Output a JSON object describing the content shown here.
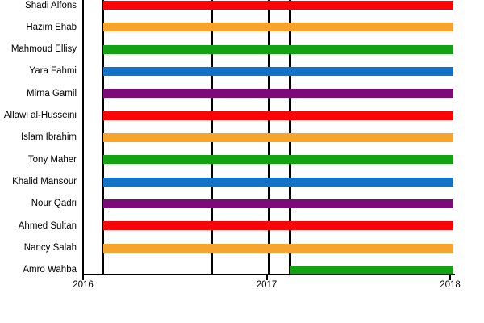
{
  "figure": {
    "background": "#ffffff",
    "axis_color": "#000000",
    "text_color": "#000000"
  },
  "chart_data": {
    "type": "bar",
    "subtype": "gantt-timeline",
    "orientation": "horizontal",
    "title": "",
    "xlabel": "",
    "ylabel": "",
    "grid": false,
    "legend": "none",
    "xlim": [
      2016,
      2018.02
    ],
    "x_ticks": [
      {
        "label": "2016",
        "value": 2016
      },
      {
        "label": "2017",
        "value": 2017
      },
      {
        "label": "2018",
        "value": 2018
      }
    ],
    "palette": {
      "red": "#fa0507",
      "orange": "#f8a32b",
      "green": "#12a410",
      "blue": "#1272c8",
      "purple": "#7d0a78"
    },
    "event_lines": [
      2016.108,
      2016.699,
      2017.011,
      2017.127
    ],
    "rows": [
      {
        "label": "Shadi Alfons",
        "start": 2016.108,
        "end": 2018.019,
        "color": "red"
      },
      {
        "label": "Hazim Ehab",
        "start": 2016.108,
        "end": 2018.019,
        "color": "orange"
      },
      {
        "label": "Mahmoud Ellisy",
        "start": 2016.108,
        "end": 2018.019,
        "color": "green"
      },
      {
        "label": "Yara Fahmi",
        "start": 2016.108,
        "end": 2018.019,
        "color": "blue"
      },
      {
        "label": "Mirna Gamil",
        "start": 2016.108,
        "end": 2018.019,
        "color": "purple"
      },
      {
        "label": "Allawi al-Husseini",
        "start": 2016.108,
        "end": 2018.019,
        "color": "red"
      },
      {
        "label": "Islam Ibrahim",
        "start": 2016.108,
        "end": 2018.019,
        "color": "orange"
      },
      {
        "label": "Tony Maher",
        "start": 2016.108,
        "end": 2018.019,
        "color": "green"
      },
      {
        "label": "Khalid Mansour",
        "start": 2016.108,
        "end": 2018.019,
        "color": "blue"
      },
      {
        "label": "Nour Qadri",
        "start": 2016.108,
        "end": 2018.019,
        "color": "purple"
      },
      {
        "label": "Ahmed Sultan",
        "start": 2016.108,
        "end": 2018.019,
        "color": "red"
      },
      {
        "label": "Nancy Salah",
        "start": 2016.108,
        "end": 2018.019,
        "color": "orange"
      },
      {
        "label": "Amro Wahba",
        "start": 2017.127,
        "end": 2018.019,
        "color": "green"
      }
    ]
  }
}
